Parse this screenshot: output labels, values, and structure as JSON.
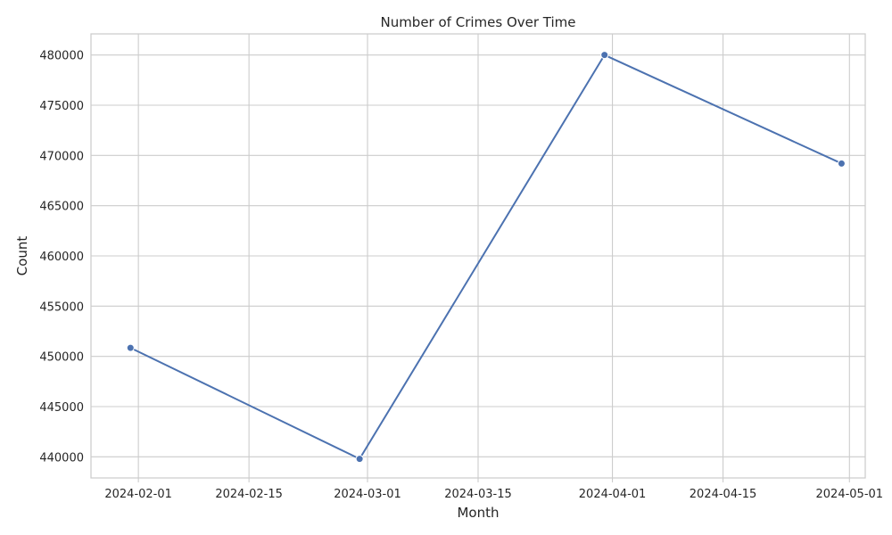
{
  "chart_data": {
    "type": "line",
    "title": "Number of Crimes Over Time",
    "xlabel": "Month",
    "ylabel": "Count",
    "x_type": "date",
    "x_ticks": [
      "2024-02-01",
      "2024-02-15",
      "2024-03-01",
      "2024-03-15",
      "2024-04-01",
      "2024-04-15",
      "2024-05-01"
    ],
    "y_ticks": [
      440000,
      445000,
      450000,
      455000,
      460000,
      465000,
      470000,
      475000,
      480000
    ],
    "xlim": [
      "2024-01-26",
      "2024-05-03"
    ],
    "ylim": [
      437900,
      482100
    ],
    "grid": true,
    "series": [
      {
        "color": "#4c72b0",
        "marker": "circle",
        "x": [
          "2024-01-31",
          "2024-02-29",
          "2024-03-31",
          "2024-04-30"
        ],
        "y": [
          450850,
          439800,
          480000,
          469200
        ]
      }
    ]
  }
}
